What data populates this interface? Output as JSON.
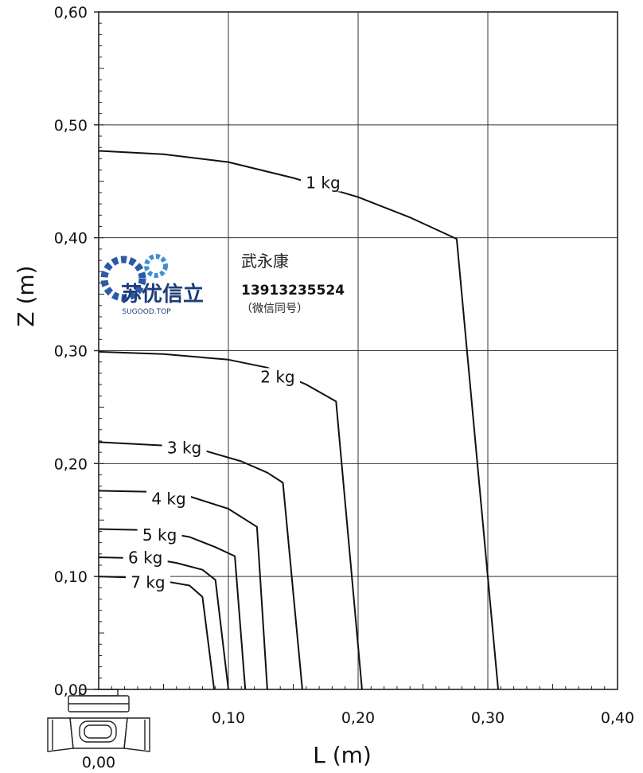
{
  "chart_data": {
    "type": "line",
    "xlabel": "L (m)",
    "ylabel": "Z (m)",
    "xlim": [
      0,
      0.4
    ],
    "ylim": [
      0,
      0.6
    ],
    "x_ticks": [
      0.0,
      0.1,
      0.2,
      0.3,
      0.4
    ],
    "x_tick_labels": [
      "0,00",
      "0,10",
      "0,20",
      "0,30",
      "0,40"
    ],
    "y_ticks": [
      0.0,
      0.1,
      0.2,
      0.3,
      0.4,
      0.5,
      0.6
    ],
    "y_tick_labels": [
      "0,00",
      "0,10",
      "0,20",
      "0,30",
      "0,40",
      "0,50",
      "0,60"
    ],
    "grid": true,
    "series": [
      {
        "name": "1 kg",
        "points": [
          [
            0.0,
            0.477
          ],
          [
            0.05,
            0.474
          ],
          [
            0.1,
            0.467
          ],
          [
            0.15,
            0.453
          ],
          [
            0.2,
            0.436
          ],
          [
            0.24,
            0.418
          ],
          [
            0.276,
            0.399
          ],
          [
            0.308,
            0.0
          ]
        ]
      },
      {
        "name": "2 kg",
        "points": [
          [
            0.0,
            0.299
          ],
          [
            0.05,
            0.297
          ],
          [
            0.1,
            0.292
          ],
          [
            0.13,
            0.285
          ],
          [
            0.16,
            0.27
          ],
          [
            0.183,
            0.255
          ],
          [
            0.203,
            0.0
          ]
        ]
      },
      {
        "name": "3 kg",
        "points": [
          [
            0.0,
            0.219
          ],
          [
            0.05,
            0.216
          ],
          [
            0.08,
            0.212
          ],
          [
            0.11,
            0.202
          ],
          [
            0.13,
            0.192
          ],
          [
            0.142,
            0.183
          ],
          [
            0.157,
            0.0
          ]
        ]
      },
      {
        "name": "4 kg",
        "points": [
          [
            0.0,
            0.176
          ],
          [
            0.04,
            0.175
          ],
          [
            0.07,
            0.171
          ],
          [
            0.1,
            0.16
          ],
          [
            0.122,
            0.144
          ],
          [
            0.13,
            0.0
          ]
        ]
      },
      {
        "name": "5 kg",
        "points": [
          [
            0.0,
            0.142
          ],
          [
            0.04,
            0.141
          ],
          [
            0.07,
            0.135
          ],
          [
            0.09,
            0.126
          ],
          [
            0.105,
            0.118
          ],
          [
            0.113,
            0.0
          ]
        ]
      },
      {
        "name": "6 kg",
        "points": [
          [
            0.0,
            0.117
          ],
          [
            0.04,
            0.116
          ],
          [
            0.06,
            0.112
          ],
          [
            0.08,
            0.106
          ],
          [
            0.09,
            0.097
          ],
          [
            0.1,
            0.0
          ]
        ]
      },
      {
        "name": "7 kg",
        "points": [
          [
            0.0,
            0.1
          ],
          [
            0.03,
            0.099
          ],
          [
            0.05,
            0.096
          ],
          [
            0.07,
            0.092
          ],
          [
            0.08,
            0.082
          ],
          [
            0.089,
            0.0
          ]
        ]
      }
    ]
  },
  "watermark": {
    "logo_text": "苏优信立",
    "logo_sub": "SUGOOD.TOP",
    "name": "武永康",
    "phone": "13913235524",
    "note": "（微信同号）",
    "gear_color_dark": "#2a5aa8",
    "gear_color_light": "#3f8fd1",
    "text_color_dark": "#1d3c7a"
  }
}
